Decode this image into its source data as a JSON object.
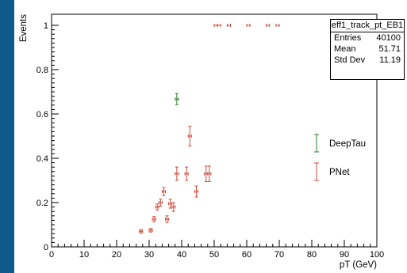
{
  "colors": {
    "background": "#0b5a8a",
    "deeptau": "#2d7d2d",
    "pnet": "#d24a3a"
  },
  "stats_box": {
    "title": "eff1_track_pt_EB1",
    "rows": [
      {
        "label": "Entries",
        "value": "40100"
      },
      {
        "label": "Mean",
        "value": "51.71"
      },
      {
        "label": "Std Dev",
        "value": "11.19"
      }
    ]
  },
  "chart_data": {
    "type": "scatter",
    "title": "",
    "xlabel": "pT (GeV)",
    "ylabel": "Events",
    "xlim": [
      0,
      100
    ],
    "ylim": [
      0,
      1.05
    ],
    "x_ticks": [
      0,
      10,
      20,
      30,
      40,
      50,
      60,
      70,
      80,
      90,
      100
    ],
    "y_ticks": [
      0,
      0.2,
      0.4,
      0.6,
      0.8,
      1
    ],
    "y_tick_labels": [
      "0",
      "0.2",
      "0.4",
      "0.6",
      "0.8",
      "1"
    ],
    "grid": false,
    "legend_position": "right",
    "series": [
      {
        "name": "DeepTau",
        "color": "#2d7d2d",
        "points": [
          {
            "x": 38.5,
            "y": 0.667,
            "err": 0.025
          }
        ]
      },
      {
        "name": "PNet",
        "color": "#d24a3a",
        "points": [
          {
            "x": 27.5,
            "y": 0.07,
            "err": 0.008
          },
          {
            "x": 30.5,
            "y": 0.075,
            "err": 0.008
          },
          {
            "x": 31.5,
            "y": 0.125,
            "err": 0.012
          },
          {
            "x": 32.5,
            "y": 0.18,
            "err": 0.014
          },
          {
            "x": 33.5,
            "y": 0.2,
            "err": 0.016
          },
          {
            "x": 34.5,
            "y": 0.25,
            "err": 0.018
          },
          {
            "x": 35.5,
            "y": 0.125,
            "err": 0.015
          },
          {
            "x": 36.5,
            "y": 0.195,
            "err": 0.02
          },
          {
            "x": 37.5,
            "y": 0.18,
            "err": 0.02
          },
          {
            "x": 38.5,
            "y": 0.33,
            "err": 0.03
          },
          {
            "x": 41.5,
            "y": 0.33,
            "err": 0.03
          },
          {
            "x": 42.5,
            "y": 0.5,
            "err": 0.045
          },
          {
            "x": 44.5,
            "y": 0.25,
            "err": 0.025
          },
          {
            "x": 47.5,
            "y": 0.33,
            "err": 0.035
          },
          {
            "x": 48.5,
            "y": 0.33,
            "err": 0.035
          },
          {
            "x": 50.5,
            "y": 1.0,
            "err": 0
          },
          {
            "x": 51.5,
            "y": 1.0,
            "err": 0
          },
          {
            "x": 54.5,
            "y": 1.0,
            "err": 0
          },
          {
            "x": 60.5,
            "y": 1.0,
            "err": 0
          },
          {
            "x": 66.5,
            "y": 1.0,
            "err": 0
          },
          {
            "x": 69.5,
            "y": 1.0,
            "err": 0
          }
        ]
      }
    ]
  }
}
